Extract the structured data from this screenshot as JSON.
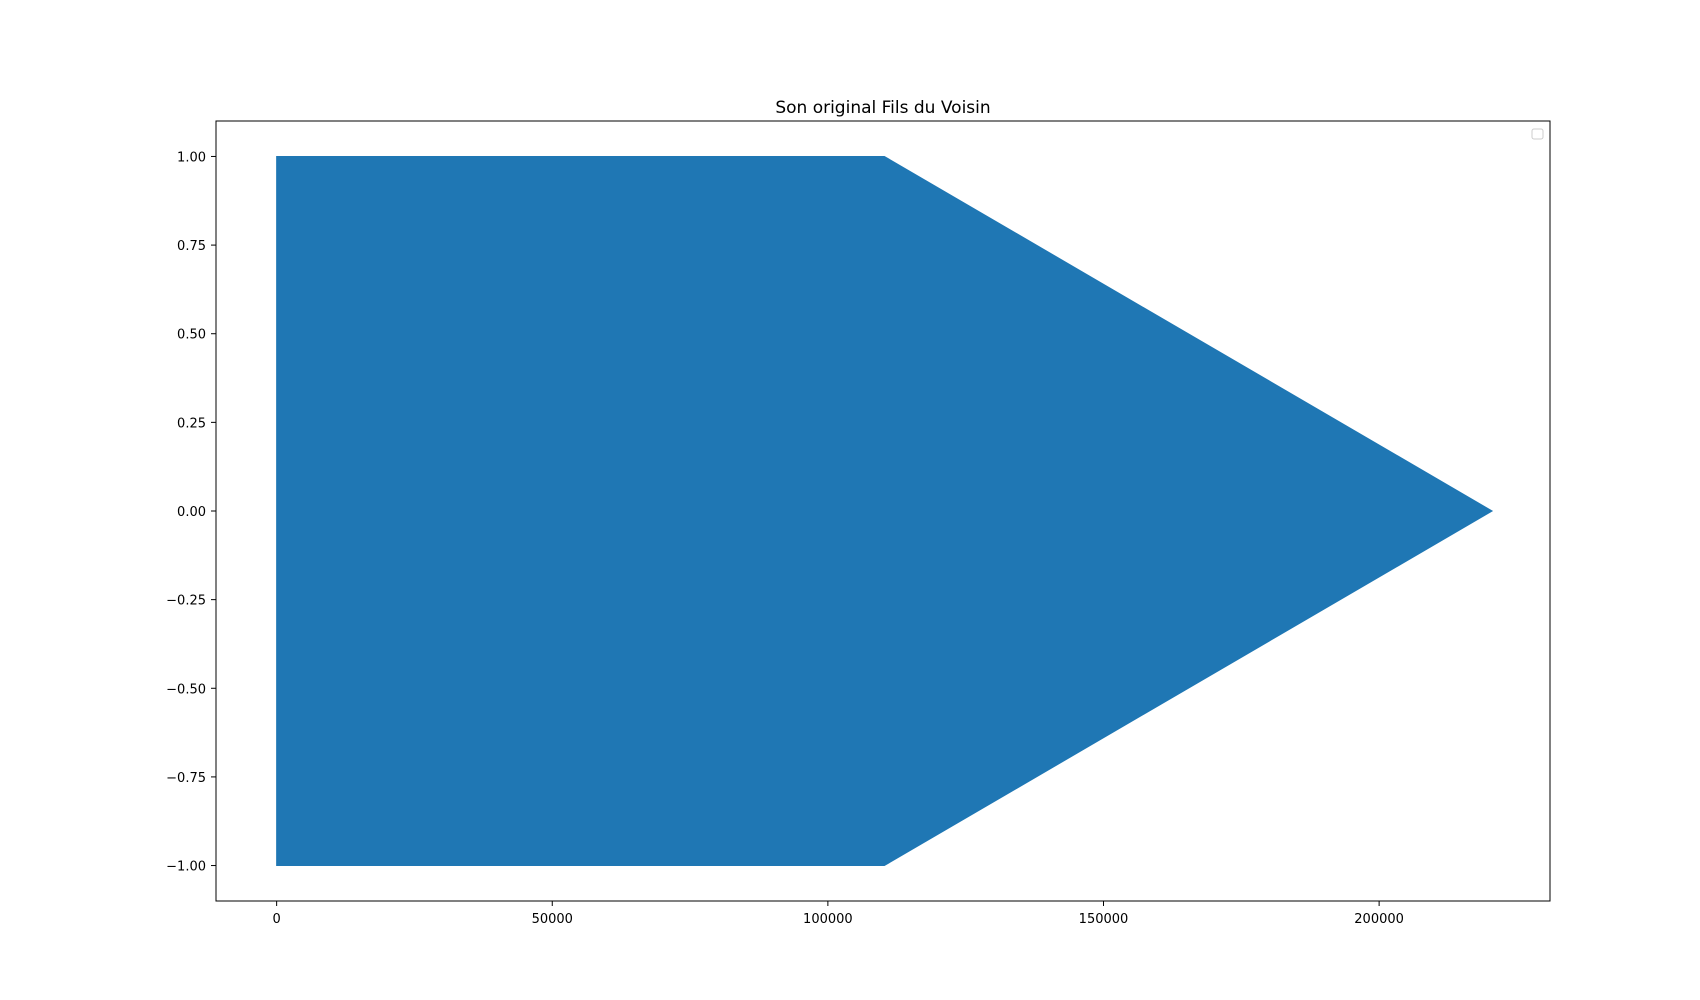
{
  "chart_data": {
    "type": "area",
    "title": "Son original Fils du Voisin",
    "xlabel": "",
    "ylabel": "",
    "xlim": [
      -11000,
      231000
    ],
    "ylim": [
      -1.1,
      1.1
    ],
    "x_ticks": [
      0,
      50000,
      100000,
      150000,
      200000
    ],
    "x_tick_labels": [
      "0",
      "50000",
      "100000",
      "150000",
      "200000"
    ],
    "y_ticks": [
      1.0,
      0.75,
      0.5,
      0.25,
      0.0,
      -0.25,
      -0.5,
      -0.75,
      -1.0
    ],
    "y_tick_labels": [
      "1.00",
      "0.75",
      "0.50",
      "0.25",
      "0.00",
      "−0.25",
      "−0.50",
      "−0.75",
      "−1.00"
    ],
    "series": [
      {
        "color": "#1f77b4",
        "envelope_upper": {
          "x": [
            0,
            110250,
            220500
          ],
          "y": [
            1.0,
            1.0,
            0.0
          ]
        },
        "envelope_lower": {
          "x": [
            0,
            110250,
            220500
          ],
          "y": [
            -1.0,
            -1.0,
            0.0
          ]
        }
      }
    ],
    "grid": false,
    "legend": {
      "placement": "top-right",
      "entries": []
    }
  }
}
